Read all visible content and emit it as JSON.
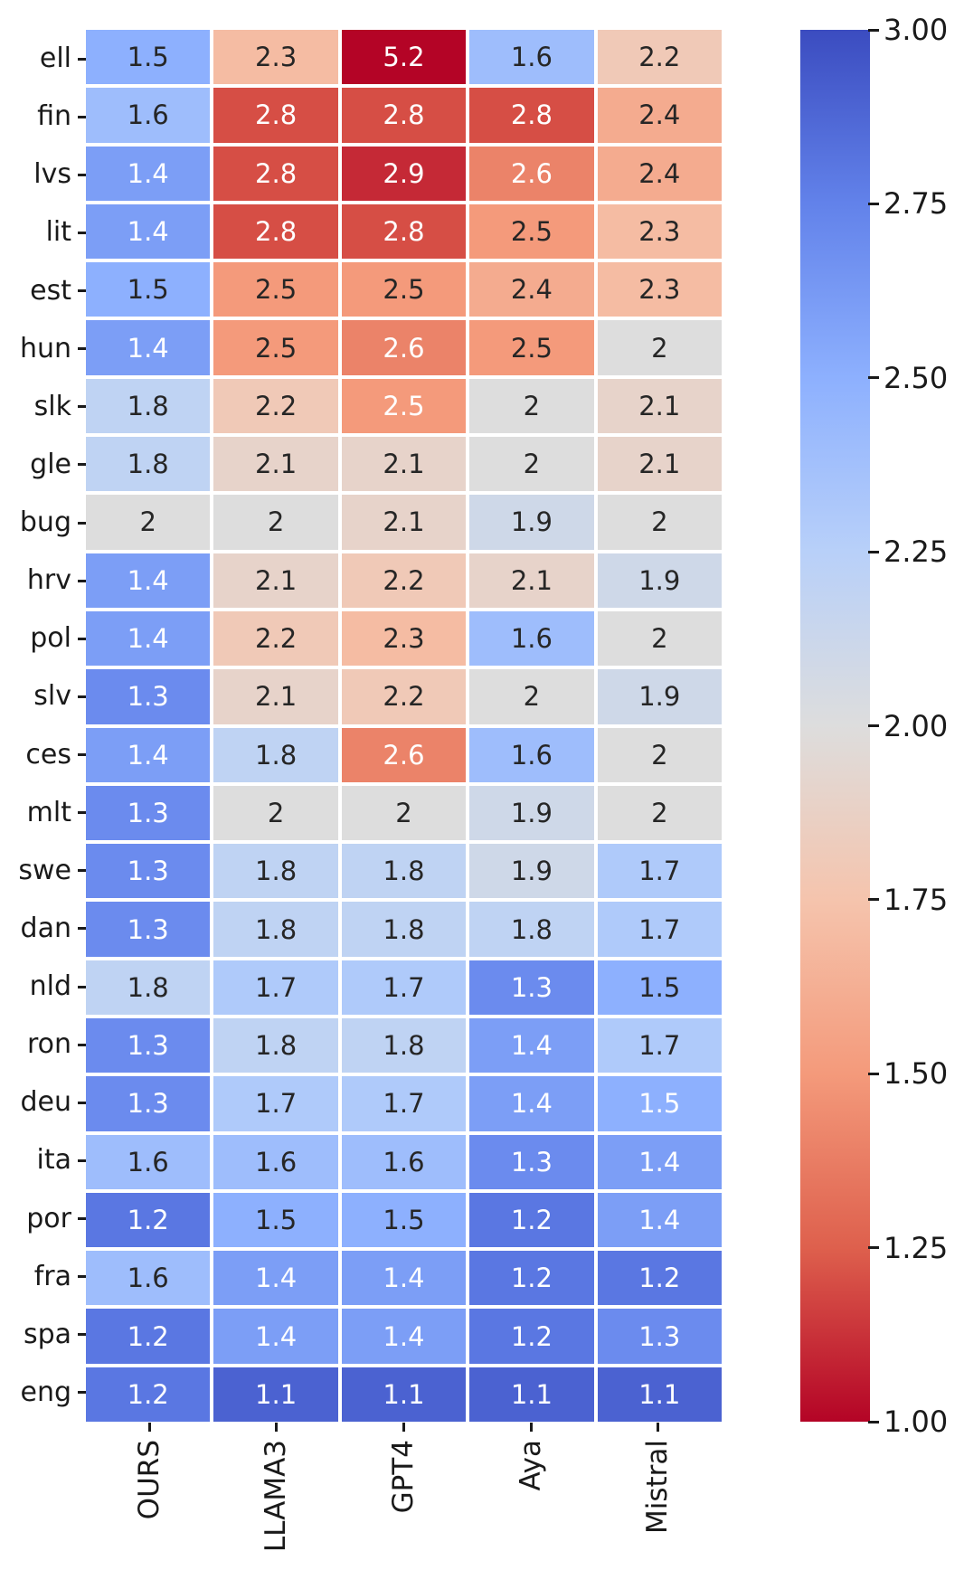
{
  "chart_data": {
    "type": "heatmap",
    "title": "",
    "xlabel": "",
    "ylabel": "",
    "columns": [
      "OURS",
      "LLAMA3",
      "GPT4",
      "Aya",
      "Mistral"
    ],
    "rows": [
      "ell",
      "fin",
      "lvs",
      "lit",
      "est",
      "hun",
      "slk",
      "gle",
      "bug",
      "hrv",
      "pol",
      "slv",
      "ces",
      "mlt",
      "swe",
      "dan",
      "nld",
      "ron",
      "deu",
      "ita",
      "por",
      "fra",
      "spa",
      "eng"
    ],
    "values": [
      [
        "1.5",
        "2.3",
        "5.2",
        "1.6",
        "2.2"
      ],
      [
        "1.6",
        "2.8",
        "2.8",
        "2.8",
        "2.4"
      ],
      [
        "1.4",
        "2.8",
        "2.9",
        "2.6",
        "2.4"
      ],
      [
        "1.4",
        "2.8",
        "2.8",
        "2.5",
        "2.3"
      ],
      [
        "1.5",
        "2.5",
        "2.5",
        "2.4",
        "2.3"
      ],
      [
        "1.4",
        "2.5",
        "2.6",
        "2.5",
        "2"
      ],
      [
        "1.8",
        "2.2",
        "2.5",
        "2",
        "2.1"
      ],
      [
        "1.8",
        "2.1",
        "2.1",
        "2",
        "2.1"
      ],
      [
        "2",
        "2",
        "2.1",
        "1.9",
        "2"
      ],
      [
        "1.4",
        "2.1",
        "2.2",
        "2.1",
        "1.9"
      ],
      [
        "1.4",
        "2.2",
        "2.3",
        "1.6",
        "2"
      ],
      [
        "1.3",
        "2.1",
        "2.2",
        "2",
        "1.9"
      ],
      [
        "1.4",
        "1.8",
        "2.6",
        "1.6",
        "2"
      ],
      [
        "1.3",
        "2",
        "2",
        "1.9",
        "2"
      ],
      [
        "1.3",
        "1.8",
        "1.8",
        "1.9",
        "1.7"
      ],
      [
        "1.3",
        "1.8",
        "1.8",
        "1.8",
        "1.7"
      ],
      [
        "1.8",
        "1.7",
        "1.7",
        "1.3",
        "1.5"
      ],
      [
        "1.3",
        "1.8",
        "1.8",
        "1.4",
        "1.7"
      ],
      [
        "1.3",
        "1.7",
        "1.7",
        "1.4",
        "1.5"
      ],
      [
        "1.6",
        "1.6",
        "1.6",
        "1.3",
        "1.4"
      ],
      [
        "1.2",
        "1.5",
        "1.5",
        "1.2",
        "1.4"
      ],
      [
        "1.6",
        "1.4",
        "1.4",
        "1.2",
        "1.2"
      ],
      [
        "1.2",
        "1.4",
        "1.4",
        "1.2",
        "1.3"
      ],
      [
        "1.2",
        "1.1",
        "1.1",
        "1.1",
        "1.1"
      ]
    ],
    "annotation_text_colors": [
      [
        "d",
        "d",
        "w",
        "d",
        "d"
      ],
      [
        "d",
        "w",
        "w",
        "w",
        "d"
      ],
      [
        "w",
        "w",
        "w",
        "w",
        "d"
      ],
      [
        "w",
        "w",
        "w",
        "d",
        "d"
      ],
      [
        "d",
        "d",
        "d",
        "d",
        "d"
      ],
      [
        "w",
        "d",
        "w",
        "d",
        "d"
      ],
      [
        "d",
        "d",
        "w",
        "d",
        "d"
      ],
      [
        "d",
        "d",
        "d",
        "d",
        "d"
      ],
      [
        "d",
        "d",
        "d",
        "d",
        "d"
      ],
      [
        "w",
        "d",
        "d",
        "d",
        "d"
      ],
      [
        "w",
        "d",
        "d",
        "d",
        "d"
      ],
      [
        "w",
        "d",
        "d",
        "d",
        "d"
      ],
      [
        "w",
        "d",
        "w",
        "d",
        "d"
      ],
      [
        "w",
        "d",
        "d",
        "d",
        "d"
      ],
      [
        "w",
        "d",
        "d",
        "d",
        "d"
      ],
      [
        "w",
        "d",
        "d",
        "d",
        "d"
      ],
      [
        "d",
        "d",
        "d",
        "w",
        "d"
      ],
      [
        "w",
        "d",
        "d",
        "w",
        "d"
      ],
      [
        "w",
        "d",
        "d",
        "w",
        "w"
      ],
      [
        "d",
        "d",
        "d",
        "w",
        "w"
      ],
      [
        "w",
        "d",
        "d",
        "w",
        "w"
      ],
      [
        "d",
        "w",
        "w",
        "w",
        "w"
      ],
      [
        "w",
        "w",
        "w",
        "w",
        "w"
      ],
      [
        "w",
        "w",
        "w",
        "w",
        "w"
      ]
    ],
    "annotation_colors": {
      "dark": "#262626",
      "white": "#ffffff"
    },
    "colorbar": {
      "ticks": [
        "3.00",
        "2.75",
        "2.50",
        "2.25",
        "2.00",
        "1.75",
        "1.50",
        "1.25",
        "1.00"
      ],
      "vmin": 1.0,
      "vmax": 3.0,
      "colormap": "coolwarm",
      "colormap_anchors": [
        "#3b4cc0",
        "#6282ea",
        "#8db0fe",
        "#b8d0f9",
        "#dddddd",
        "#f5c4ad",
        "#f49a7b",
        "#de604d",
        "#b40426"
      ]
    },
    "grid_line_color": "#ffffff",
    "legend_position": "right-colorbar"
  }
}
